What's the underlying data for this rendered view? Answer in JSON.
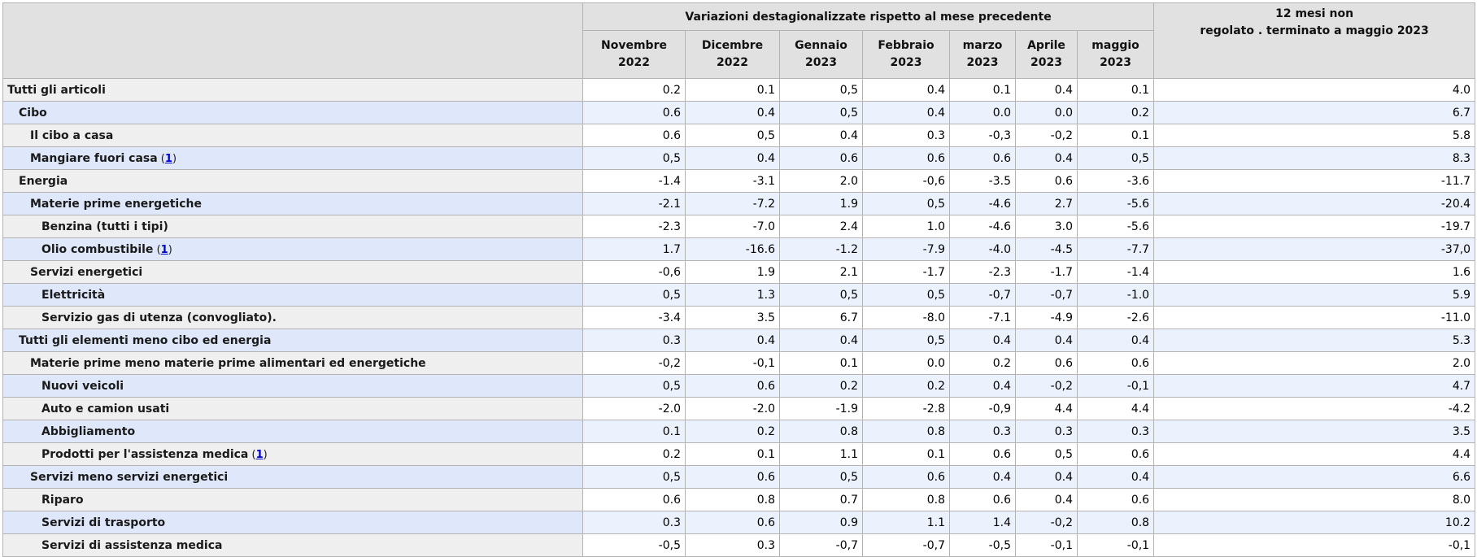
{
  "header": {
    "group_title": "Variazioni destagionalizzate rispetto al mese precedente",
    "twelve_month_line1": "12 mesi non",
    "twelve_month_line2": "regolato . terminato a maggio 2023",
    "months": [
      {
        "month": "Novembre",
        "year": "2022"
      },
      {
        "month": "Dicembre",
        "year": "2022"
      },
      {
        "month": "Gennaio",
        "year": "2023"
      },
      {
        "month": "Febbraio",
        "year": "2023"
      },
      {
        "month": "marzo",
        "year": "2023"
      },
      {
        "month": "Aprile",
        "year": "2023"
      },
      {
        "month": "maggio",
        "year": "2023"
      }
    ]
  },
  "rows": [
    {
      "label": "Tutti gli articoli",
      "level": 0,
      "footnote": "",
      "values": [
        "0.2",
        "0.1",
        "0,5",
        "0.4",
        "0.1",
        "0.4",
        "0.1"
      ],
      "annual": "4.0"
    },
    {
      "label": "Cibo",
      "level": 1,
      "footnote": "",
      "values": [
        "0.6",
        "0.4",
        "0,5",
        "0.4",
        "0.0",
        "0.0",
        "0.2"
      ],
      "annual": "6.7"
    },
    {
      "label": "Il cibo a casa",
      "level": 2,
      "footnote": "",
      "values": [
        "0.6",
        "0,5",
        "0.4",
        "0.3",
        "-0,3",
        "-0,2",
        "0.1"
      ],
      "annual": "5.8"
    },
    {
      "label": "Mangiare fuori casa",
      "level": 2,
      "footnote": "1",
      "values": [
        "0,5",
        "0.4",
        "0.6",
        "0.6",
        "0.6",
        "0.4",
        "0,5"
      ],
      "annual": "8.3"
    },
    {
      "label": "Energia",
      "level": 1,
      "footnote": "",
      "values": [
        "-1.4",
        "-3.1",
        "2.0",
        "-0,6",
        "-3.5",
        "0.6",
        "-3.6"
      ],
      "annual": "-11.7"
    },
    {
      "label": "Materie prime energetiche",
      "level": 2,
      "footnote": "",
      "values": [
        "-2.1",
        "-7.2",
        "1.9",
        "0,5",
        "-4.6",
        "2.7",
        "-5.6"
      ],
      "annual": "-20.4"
    },
    {
      "label": "Benzina (tutti i tipi)",
      "level": 3,
      "footnote": "",
      "values": [
        "-2.3",
        "-7.0",
        "2.4",
        "1.0",
        "-4.6",
        "3.0",
        "-5.6"
      ],
      "annual": "-19.7"
    },
    {
      "label": "Olio combustibile",
      "level": 3,
      "footnote": "1",
      "values": [
        "1.7",
        "-16.6",
        "-1.2",
        "-7.9",
        "-4.0",
        "-4.5",
        "-7.7"
      ],
      "annual": "-37,0"
    },
    {
      "label": "Servizi energetici",
      "level": 2,
      "footnote": "",
      "values": [
        "-0,6",
        "1.9",
        "2.1",
        "-1.7",
        "-2.3",
        "-1.7",
        "-1.4"
      ],
      "annual": "1.6"
    },
    {
      "label": "Elettricità",
      "level": 3,
      "footnote": "",
      "values": [
        "0,5",
        "1.3",
        "0,5",
        "0,5",
        "-0,7",
        "-0,7",
        "-1.0"
      ],
      "annual": "5.9"
    },
    {
      "label": "Servizio gas di utenza (convogliato).",
      "level": 3,
      "footnote": "",
      "values": [
        "-3.4",
        "3.5",
        "6.7",
        "-8.0",
        "-7.1",
        "-4.9",
        "-2.6"
      ],
      "annual": "-11.0"
    },
    {
      "label": "Tutti gli elementi meno cibo ed energia",
      "level": 1,
      "footnote": "",
      "values": [
        "0.3",
        "0.4",
        "0.4",
        "0,5",
        "0.4",
        "0.4",
        "0.4"
      ],
      "annual": "5.3"
    },
    {
      "label": "Materie prime meno materie prime alimentari ed energetiche",
      "level": 2,
      "footnote": "",
      "values": [
        "-0,2",
        "-0,1",
        "0.1",
        "0.0",
        "0.2",
        "0.6",
        "0.6"
      ],
      "annual": "2.0"
    },
    {
      "label": "Nuovi veicoli",
      "level": 3,
      "footnote": "",
      "values": [
        "0,5",
        "0.6",
        "0.2",
        "0.2",
        "0.4",
        "-0,2",
        "-0,1"
      ],
      "annual": "4.7"
    },
    {
      "label": "Auto e camion usati",
      "level": 3,
      "footnote": "",
      "values": [
        "-2.0",
        "-2.0",
        "-1.9",
        "-2.8",
        "-0,9",
        "4.4",
        "4.4"
      ],
      "annual": "-4.2"
    },
    {
      "label": "Abbigliamento",
      "level": 3,
      "footnote": "",
      "values": [
        "0.1",
        "0.2",
        "0.8",
        "0.8",
        "0.3",
        "0.3",
        "0.3"
      ],
      "annual": "3.5"
    },
    {
      "label": "Prodotti per l'assistenza medica",
      "level": 3,
      "footnote": "1",
      "values": [
        "0.2",
        "0.1",
        "1.1",
        "0.1",
        "0.6",
        "0,5",
        "0.6"
      ],
      "annual": "4.4"
    },
    {
      "label": "Servizi meno servizi energetici",
      "level": 2,
      "footnote": "",
      "values": [
        "0,5",
        "0.6",
        "0,5",
        "0.6",
        "0.4",
        "0.4",
        "0.4"
      ],
      "annual": "6.6"
    },
    {
      "label": "Riparo",
      "level": 3,
      "footnote": "",
      "values": [
        "0.6",
        "0.8",
        "0.7",
        "0.8",
        "0.6",
        "0.4",
        "0.6"
      ],
      "annual": "8.0"
    },
    {
      "label": "Servizi di trasporto",
      "level": 3,
      "footnote": "",
      "values": [
        "0.3",
        "0.6",
        "0.9",
        "1.1",
        "1.4",
        "-0,2",
        "0.8"
      ],
      "annual": "10.2"
    },
    {
      "label": "Servizi di assistenza medica",
      "level": 3,
      "footnote": "",
      "values": [
        "-0,5",
        "0.3",
        "-0,7",
        "-0,7",
        "-0,5",
        "-0,1",
        "-0,1"
      ],
      "annual": "-0,1"
    }
  ]
}
